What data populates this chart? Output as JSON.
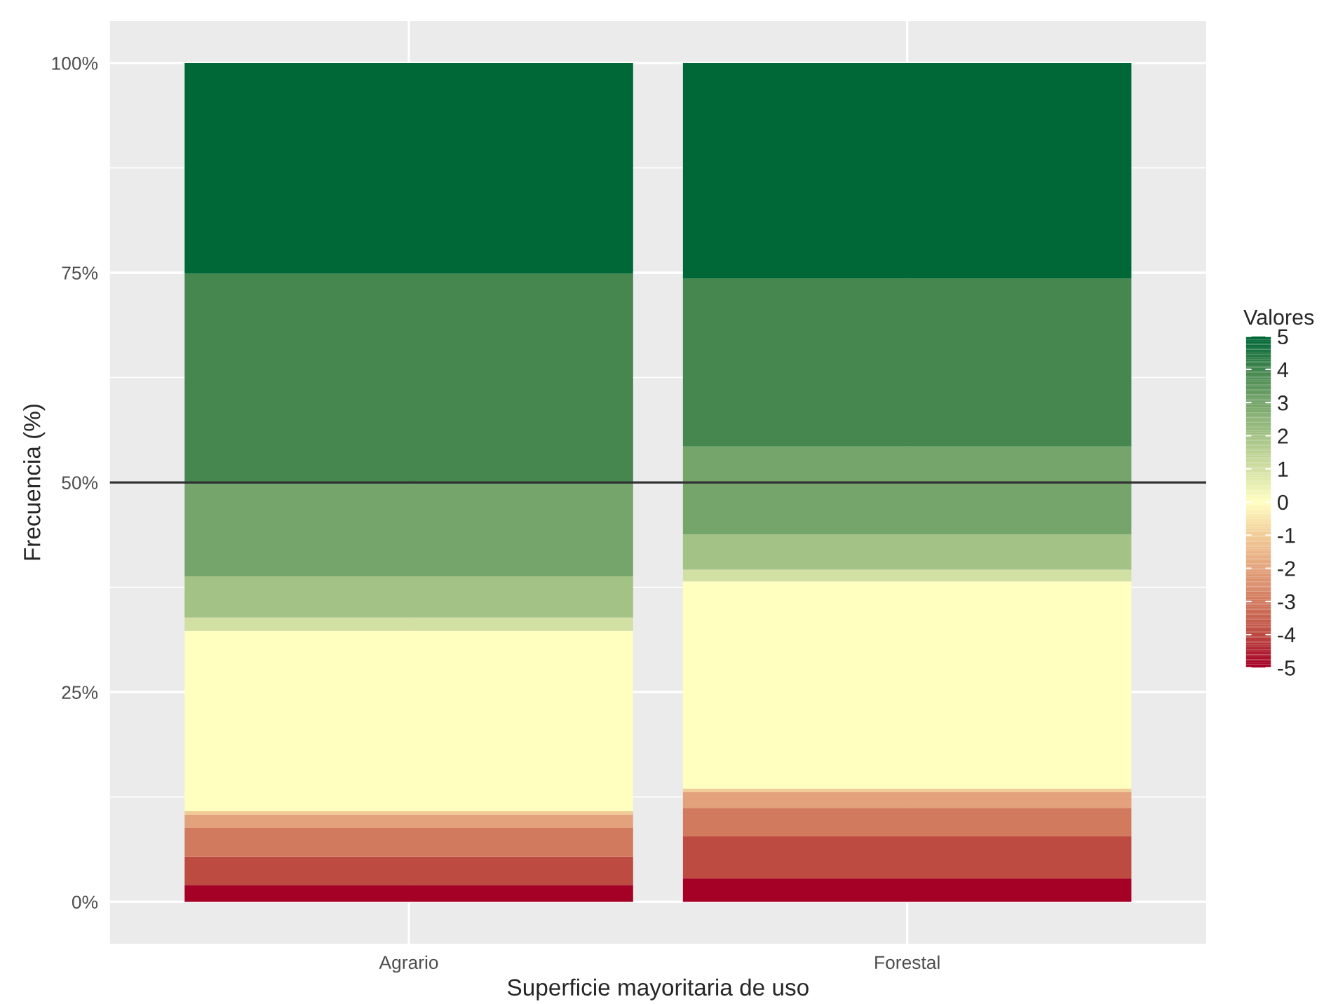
{
  "chart_data": {
    "type": "bar",
    "stacked": true,
    "xlabel": "Superficie mayoritaria de uso",
    "ylabel": "Frecuencia (%)",
    "legend_title": "Valores",
    "legend": "right",
    "grid": true,
    "categories": [
      "Agrario",
      "Forestal"
    ],
    "series": [
      {
        "name": "-5",
        "color": "#a50026",
        "values": [
          2.0,
          2.8
        ]
      },
      {
        "name": "-4",
        "color": "#bd4b41",
        "values": [
          3.4,
          5.0
        ]
      },
      {
        "name": "-3",
        "color": "#d27a5e",
        "values": [
          3.4,
          3.4
        ]
      },
      {
        "name": "-2",
        "color": "#e3a27b",
        "values": [
          1.6,
          1.9
        ]
      },
      {
        "name": "-1",
        "color": "#f2cc96",
        "values": [
          0.4,
          0.4
        ]
      },
      {
        "name": "0",
        "color": "#ffffc0",
        "values": [
          21.5,
          24.7
        ]
      },
      {
        "name": "1",
        "color": "#d2e0a3",
        "values": [
          1.6,
          1.4
        ]
      },
      {
        "name": "2",
        "color": "#a3c285",
        "values": [
          4.9,
          4.2
        ]
      },
      {
        "name": "3",
        "color": "#75a56a",
        "values": [
          11.0,
          10.5
        ]
      },
      {
        "name": "4",
        "color": "#45874f",
        "values": [
          25.1,
          20.0
        ]
      },
      {
        "name": "5",
        "color": "#006837",
        "values": [
          25.1,
          25.7
        ]
      }
    ],
    "ylim": [
      -5,
      105
    ],
    "yticks": [
      {
        "value": 0,
        "label": "0%"
      },
      {
        "value": 25,
        "label": "25%"
      },
      {
        "value": 50,
        "label": "50%"
      },
      {
        "value": 75,
        "label": "75%"
      },
      {
        "value": 100,
        "label": "100%"
      }
    ],
    "ref_lines": [
      {
        "axis": "y",
        "value": 50,
        "label": null,
        "color": "#333333"
      }
    ]
  }
}
